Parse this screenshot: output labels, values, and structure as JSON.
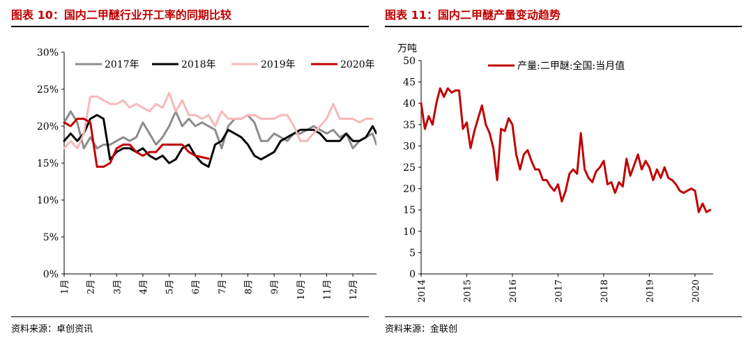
{
  "left_panel": {
    "title": "图表 10：国内二甲醚行业开工率的同期比较",
    "source": "资料来源：卓创资讯"
  },
  "right_panel": {
    "title": "图表 11：国内二甲醚产量变动趋势",
    "source": "资料来源：金联创"
  },
  "chart_data": [
    {
      "type": "line",
      "title": "",
      "x_tick_labels": [
        "1月",
        "2月",
        "3月",
        "4月",
        "5月",
        "6月",
        "7月",
        "8月",
        "9月",
        "10月",
        "11月",
        "12月"
      ],
      "y_tick_labels": [
        "0%",
        "5%",
        "10%",
        "15%",
        "20%",
        "25%",
        "30%"
      ],
      "ylim": [
        0,
        30
      ],
      "y_unit": "%",
      "xlim": [
        1,
        12.9
      ],
      "legend_position": "top",
      "series": [
        {
          "name": "2017年",
          "color": "#8c8c8c",
          "x": [
            1,
            1.25,
            1.5,
            1.75,
            2,
            2.25,
            2.5,
            2.75,
            3,
            3.25,
            3.5,
            3.75,
            4,
            4.25,
            4.5,
            4.75,
            5,
            5.25,
            5.5,
            5.75,
            6,
            6.25,
            6.5,
            6.75,
            7,
            7.25,
            7.5,
            7.75,
            8,
            8.25,
            8.5,
            8.75,
            9,
            9.25,
            9.5,
            9.75,
            10,
            10.25,
            10.5,
            10.75,
            11,
            11.25,
            11.5,
            11.75,
            12,
            12.25,
            12.5,
            12.75,
            12.9
          ],
          "y": [
            20.5,
            22,
            20.5,
            17,
            18.5,
            17,
            17.5,
            17.5,
            18,
            18.5,
            18,
            18.5,
            20.5,
            19,
            17.5,
            18.5,
            20,
            22,
            20,
            21,
            20,
            20.5,
            20,
            19.5,
            17,
            20,
            21,
            21,
            21.5,
            20.5,
            18,
            18,
            19,
            18.5,
            18,
            19,
            19,
            19.5,
            20,
            19.5,
            19,
            19.5,
            18.5,
            19,
            17,
            18,
            18.5,
            19,
            17.5
          ]
        },
        {
          "name": "2018年",
          "color": "#000000",
          "x": [
            1,
            1.25,
            1.5,
            1.75,
            2,
            2.25,
            2.5,
            2.75,
            3,
            3.25,
            3.5,
            3.75,
            4,
            4.25,
            4.5,
            4.75,
            5,
            5.25,
            5.5,
            5.75,
            6,
            6.25,
            6.5,
            6.75,
            7,
            7.25,
            7.5,
            7.75,
            8,
            8.25,
            8.5,
            8.75,
            9,
            9.25,
            9.5,
            9.75,
            10,
            10.25,
            10.5,
            10.75,
            11,
            11.25,
            11.5,
            11.75,
            12,
            12.25,
            12.5,
            12.75,
            12.9
          ],
          "y": [
            18,
            19,
            18,
            19,
            21,
            21.5,
            21,
            15.5,
            16.5,
            17,
            17,
            16.5,
            17,
            16,
            15.5,
            16,
            15,
            15.5,
            17,
            17.5,
            16,
            15,
            14.5,
            17.5,
            18,
            19.5,
            19,
            18.5,
            17.5,
            16,
            15.5,
            16,
            16.5,
            18,
            18.5,
            19,
            19.5,
            19.5,
            19.5,
            19,
            18,
            18,
            18,
            19,
            18,
            18,
            18.5,
            20,
            19
          ]
        },
        {
          "name": "2019年",
          "color": "#f7b8b8",
          "x": [
            1,
            1.25,
            1.5,
            1.75,
            2,
            2.25,
            2.5,
            2.75,
            3,
            3.25,
            3.5,
            3.75,
            4,
            4.25,
            4.5,
            4.75,
            5,
            5.25,
            5.5,
            5.75,
            6,
            6.25,
            6.5,
            6.75,
            7,
            7.25,
            7.5,
            7.75,
            8,
            8.25,
            8.5,
            8.75,
            9,
            9.25,
            9.5,
            9.75,
            10,
            10.25,
            10.5,
            10.75,
            11,
            11.25,
            11.5,
            11.75,
            12,
            12.25,
            12.5,
            12.75
          ],
          "y": [
            17,
            18,
            17,
            19,
            24,
            24,
            23.5,
            23,
            23,
            23.5,
            22.5,
            23,
            22.5,
            22,
            23,
            22.5,
            24.5,
            22,
            23.5,
            21.5,
            21.5,
            21,
            21.5,
            20,
            22,
            21,
            21,
            21,
            21.5,
            21.5,
            21,
            21,
            21,
            21.5,
            21.5,
            20,
            18,
            18,
            19,
            20,
            21,
            23,
            21,
            21,
            21,
            20.5,
            21,
            21
          ]
        },
        {
          "name": "2020年",
          "color": "#c00000",
          "x": [
            1,
            1.25,
            1.5,
            1.75,
            2,
            2.25,
            2.5,
            2.75,
            3,
            3.25,
            3.5,
            3.75,
            4,
            4.25,
            4.5,
            4.75,
            5,
            5.25,
            5.5,
            5.75,
            6,
            6.25,
            6.5
          ],
          "y": [
            20.5,
            20,
            21,
            21,
            20.5,
            14.5,
            14.5,
            15,
            17,
            17.5,
            17.5,
            16.5,
            16,
            16.5,
            16.5,
            17.5,
            17.5,
            17.5,
            17.5,
            16.5,
            16,
            15.8,
            15.6
          ]
        }
      ]
    },
    {
      "type": "line",
      "title": "",
      "ylabel": "万吨",
      "x_tick_labels": [
        "2014",
        "2015",
        "2016",
        "2017",
        "2018",
        "2019",
        "2020"
      ],
      "y_tick_labels": [
        "0",
        "5",
        "10",
        "15",
        "20",
        "25",
        "30",
        "35",
        "40",
        "45",
        "50"
      ],
      "ylim": [
        0,
        50
      ],
      "xlim": [
        2014,
        2020.4
      ],
      "legend_position": "top",
      "series": [
        {
          "name": "产量:二甲醚:全国:当月值",
          "color": "#c00000",
          "x": [
            2014.0,
            2014.083,
            2014.167,
            2014.25,
            2014.333,
            2014.417,
            2014.5,
            2014.583,
            2014.667,
            2014.75,
            2014.833,
            2014.917,
            2015.0,
            2015.083,
            2015.167,
            2015.25,
            2015.333,
            2015.417,
            2015.5,
            2015.583,
            2015.667,
            2015.75,
            2015.833,
            2015.917,
            2016.0,
            2016.083,
            2016.167,
            2016.25,
            2016.333,
            2016.417,
            2016.5,
            2016.583,
            2016.667,
            2016.75,
            2016.833,
            2016.917,
            2017.0,
            2017.083,
            2017.167,
            2017.25,
            2017.333,
            2017.417,
            2017.5,
            2017.583,
            2017.667,
            2017.75,
            2017.833,
            2017.917,
            2018.0,
            2018.083,
            2018.167,
            2018.25,
            2018.333,
            2018.417,
            2018.5,
            2018.583,
            2018.667,
            2018.75,
            2018.833,
            2018.917,
            2019.0,
            2019.083,
            2019.167,
            2019.25,
            2019.333,
            2019.417,
            2019.5,
            2019.583,
            2019.667,
            2019.75,
            2019.833,
            2019.917,
            2020.0,
            2020.083,
            2020.167,
            2020.25,
            2020.333
          ],
          "y": [
            40,
            34,
            37,
            35,
            40,
            43.5,
            41.5,
            43.5,
            42.5,
            43,
            43,
            34,
            35.5,
            29.5,
            33.5,
            36.5,
            39.5,
            35,
            33,
            29.5,
            22,
            34,
            33.5,
            36.5,
            35,
            28,
            24.5,
            28,
            29,
            26.5,
            24.5,
            24.5,
            22,
            22,
            20.5,
            19.5,
            21,
            17,
            19.5,
            23.5,
            24.5,
            23.5,
            33,
            24.5,
            22.5,
            21.5,
            24,
            25,
            26.5,
            21,
            21.5,
            19,
            21.5,
            20.5,
            27,
            23,
            25.5,
            28,
            24.5,
            26.5,
            25,
            22,
            24.5,
            22.5,
            25,
            22.5,
            22,
            21,
            19.5,
            19,
            19.5,
            20,
            19.5,
            14.5,
            16.5,
            14.5,
            15
          ]
        }
      ]
    }
  ]
}
